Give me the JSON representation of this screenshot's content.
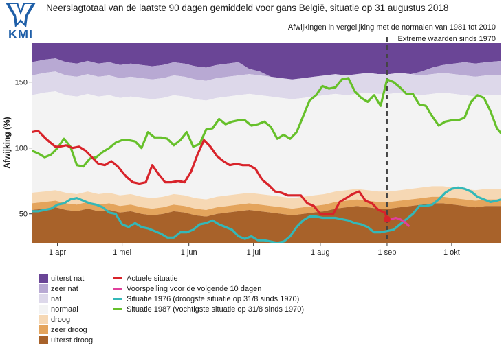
{
  "header": {
    "logo_text": "KMI",
    "title": "Neerslagtotaal van de laatste 90 dagen gemiddeld voor gans België, situatie op 31 augustus 2018",
    "subtitle_normals": "Afwijkingen in vergelijking met de normalen van 1981 tot 2010",
    "subtitle_extremes": "Extreme waarden sinds 1970"
  },
  "legend": {
    "bands": [
      {
        "label": "uiterst nat",
        "color": "#6a4596"
      },
      {
        "label": "zeer nat",
        "color": "#b8a9d3"
      },
      {
        "label": "nat",
        "color": "#ddd8ea"
      },
      {
        "label": "normaal",
        "color": "#f3f3f3"
      },
      {
        "label": "droog",
        "color": "#f6d8b4"
      },
      {
        "label": "zeer droog",
        "color": "#e4a45c"
      },
      {
        "label": "uiterst droog",
        "color": "#a8622a"
      }
    ],
    "lines": [
      {
        "label": "Actuele situatie",
        "color": "#d8232a"
      },
      {
        "label": "Voorspelling voor de volgende 10 dagen",
        "color": "#e0409c"
      },
      {
        "label": "Situatie 1976 (droogste situatie op 31/8 sinds 1970)",
        "color": "#33b8b8"
      },
      {
        "label": "Situatie 1987 (vochtigste situatie op 31/8 sinds 1970)",
        "color": "#66c02a"
      }
    ]
  },
  "chart_data": {
    "type": "line",
    "title": "Neerslagtotaal van de laatste 90 dagen gemiddeld voor gans België, situatie op 31 augustus 2018",
    "ylabel": "Afwijking (%)",
    "xlabel": "",
    "xlim": [
      "2018-03-20",
      "2018-10-24"
    ],
    "ylim": [
      28,
      180
    ],
    "xlim_days": [
      79,
      297
    ],
    "yticks": [
      50,
      100,
      150
    ],
    "xticks": [
      {
        "label": "1 apr",
        "day": 91
      },
      {
        "label": "1 mei",
        "day": 121
      },
      {
        "label": "1 jun",
        "day": 152
      },
      {
        "label": "1 jul",
        "day": 182
      },
      {
        "label": "1 aug",
        "day": 213
      },
      {
        "label": "1 sep",
        "day": 244
      },
      {
        "label": "1 okt",
        "day": 274
      }
    ],
    "marker_day": 244,
    "bands": {
      "x": [
        79,
        85,
        90,
        95,
        100,
        105,
        110,
        115,
        120,
        125,
        130,
        135,
        140,
        145,
        150,
        155,
        160,
        165,
        170,
        175,
        180,
        185,
        190,
        195,
        200,
        205,
        210,
        215,
        220,
        225,
        230,
        235,
        240,
        245,
        250,
        255,
        260,
        265,
        270,
        275,
        280,
        285,
        290,
        297
      ],
      "b1": [
        53,
        54,
        55,
        53,
        52,
        54,
        52,
        53,
        51,
        52,
        50,
        49,
        50,
        52,
        51,
        49,
        48,
        50,
        51,
        52,
        53,
        52,
        51,
        50,
        49,
        50,
        51,
        52,
        54,
        55,
        56,
        55,
        54,
        54,
        55,
        56,
        57,
        58,
        58,
        57,
        56,
        55,
        56,
        56
      ],
      "b2": [
        58,
        59,
        60,
        58,
        57,
        59,
        57,
        58,
        56,
        57,
        55,
        54,
        55,
        57,
        56,
        54,
        53,
        55,
        56,
        57,
        58,
        57,
        56,
        55,
        54,
        55,
        56,
        57,
        59,
        60,
        61,
        60,
        59,
        59,
        60,
        61,
        62,
        63,
        63,
        62,
        61,
        60,
        61,
        61
      ],
      "b3": [
        66,
        67,
        68,
        66,
        65,
        67,
        65,
        66,
        64,
        65,
        63,
        62,
        63,
        65,
        64,
        62,
        61,
        63,
        64,
        65,
        66,
        65,
        64,
        63,
        62,
        63,
        64,
        65,
        67,
        68,
        69,
        68,
        67,
        67,
        68,
        69,
        70,
        71,
        71,
        70,
        69,
        68,
        69,
        69
      ],
      "b4": [
        140,
        142,
        143,
        140,
        139,
        141,
        139,
        140,
        138,
        139,
        138,
        137,
        138,
        140,
        139,
        137,
        136,
        138,
        139,
        140,
        141,
        140,
        139,
        138,
        137,
        138,
        139,
        140,
        141,
        140,
        141,
        142,
        141,
        141,
        142,
        141,
        140,
        141,
        142,
        141,
        140,
        139,
        140,
        140
      ],
      "b5": [
        155,
        157,
        158,
        155,
        154,
        156,
        154,
        155,
        153,
        154,
        153,
        152,
        153,
        155,
        154,
        152,
        151,
        153,
        154,
        155,
        156,
        155,
        154,
        153,
        152,
        153,
        154,
        155,
        156,
        155,
        156,
        157,
        156,
        156,
        157,
        156,
        155,
        156,
        157,
        156,
        155,
        154,
        155,
        155
      ],
      "b6": [
        165,
        167,
        168,
        165,
        164,
        166,
        164,
        165,
        163,
        164,
        163,
        162,
        163,
        165,
        164,
        162,
        161,
        163,
        164,
        165,
        160,
        158,
        154,
        150,
        147,
        146,
        147,
        149,
        151,
        153,
        155,
        157,
        156,
        156,
        157,
        156,
        158,
        161,
        163,
        164,
        165,
        164,
        165,
        166
      ]
    },
    "series": [
      {
        "name": "Actuele situatie",
        "color": "#d8232a",
        "x": [
          79,
          82,
          85,
          87,
          90,
          92,
          95,
          98,
          101,
          104,
          107,
          110,
          113,
          116,
          119,
          121,
          123,
          126,
          129,
          132,
          135,
          138,
          141,
          144,
          147,
          150,
          153,
          156,
          159,
          162,
          165,
          168,
          171,
          174,
          177,
          180,
          183,
          186,
          189,
          192,
          195,
          198,
          201,
          204,
          207,
          210,
          213,
          216,
          219,
          222,
          225,
          228,
          231,
          234,
          237,
          240,
          243,
          244
        ],
        "y": [
          112,
          113,
          108,
          105,
          101,
          101,
          102,
          100,
          101,
          98,
          93,
          88,
          87,
          90,
          86,
          82,
          78,
          74,
          73,
          74,
          87,
          80,
          74,
          74,
          75,
          74,
          82,
          95,
          106,
          101,
          94,
          90,
          87,
          88,
          87,
          87,
          84,
          76,
          72,
          67,
          66,
          64,
          64,
          64,
          58,
          56,
          50,
          50,
          50,
          59,
          62,
          65,
          67,
          60,
          58,
          53,
          51,
          46
        ]
      },
      {
        "name": "Voorspelling voor de volgende 10 dagen",
        "color": "#e0409c",
        "x": [
          244,
          246,
          248,
          250,
          252,
          254
        ],
        "y": [
          46,
          46,
          47,
          46,
          44,
          41
        ]
      },
      {
        "name": "Situatie 1976 (droogste situatie op 31/8 sinds 1970)",
        "color": "#33b8b8",
        "x": [
          79,
          82,
          85,
          88,
          91,
          94,
          97,
          100,
          103,
          106,
          109,
          112,
          115,
          118,
          121,
          124,
          127,
          130,
          133,
          136,
          139,
          142,
          145,
          148,
          151,
          154,
          157,
          160,
          163,
          166,
          169,
          172,
          175,
          178,
          181,
          184,
          187,
          190,
          193,
          196,
          199,
          202,
          205,
          208,
          211,
          214,
          217,
          220,
          223,
          226,
          229,
          232,
          235,
          238,
          241,
          244,
          247,
          250,
          253,
          256,
          259,
          262,
          265,
          268,
          271,
          274,
          277,
          280,
          283,
          286,
          289,
          292,
          295,
          297
        ],
        "y": [
          52,
          52,
          53,
          54,
          57,
          58,
          61,
          62,
          60,
          58,
          57,
          55,
          51,
          50,
          42,
          40,
          43,
          40,
          39,
          37,
          35,
          32,
          32,
          36,
          36,
          38,
          42,
          43,
          45,
          42,
          40,
          38,
          33,
          31,
          33,
          30,
          30,
          29,
          28,
          29,
          33,
          40,
          45,
          48,
          48,
          47,
          47,
          47,
          46,
          45,
          43,
          42,
          40,
          36,
          36,
          37,
          38,
          42,
          46,
          50,
          56,
          56,
          57,
          61,
          66,
          69,
          70,
          69,
          67,
          63,
          61,
          59,
          60,
          61
        ]
      },
      {
        "name": "Situatie 1987 (vochtigste situatie op 31/8 sinds 1970)",
        "color": "#66c02a",
        "x": [
          79,
          82,
          85,
          88,
          91,
          94,
          97,
          100,
          103,
          106,
          109,
          112,
          115,
          118,
          121,
          124,
          127,
          130,
          133,
          136,
          139,
          142,
          145,
          148,
          151,
          154,
          157,
          160,
          163,
          166,
          169,
          172,
          175,
          178,
          181,
          184,
          187,
          190,
          193,
          196,
          199,
          202,
          205,
          208,
          211,
          214,
          217,
          220,
          223,
          226,
          229,
          232,
          235,
          238,
          241,
          244,
          247,
          250,
          253,
          256,
          259,
          262,
          265,
          268,
          271,
          274,
          277,
          280,
          283,
          286,
          289,
          292,
          295,
          297
        ],
        "y": [
          98,
          96,
          93,
          95,
          100,
          107,
          101,
          87,
          86,
          92,
          93,
          97,
          100,
          104,
          106,
          106,
          105,
          100,
          112,
          108,
          108,
          107,
          102,
          106,
          112,
          101,
          103,
          114,
          115,
          122,
          118,
          120,
          121,
          121,
          117,
          118,
          120,
          116,
          107,
          110,
          107,
          112,
          124,
          136,
          140,
          147,
          145,
          146,
          152,
          153,
          143,
          138,
          135,
          140,
          132,
          152,
          150,
          146,
          141,
          141,
          133,
          132,
          124,
          117,
          120,
          121,
          121,
          123,
          135,
          140,
          138,
          128,
          115,
          111
        ]
      }
    ]
  }
}
